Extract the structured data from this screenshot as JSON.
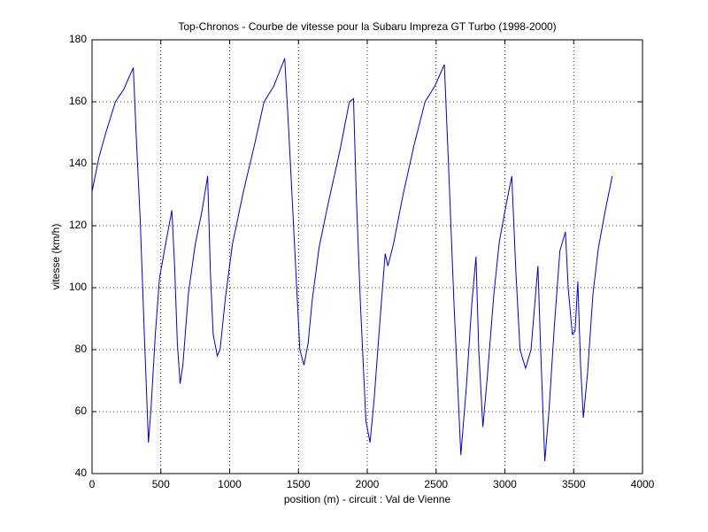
{
  "chart_data": {
    "type": "line",
    "title": "Top-Chronos - Courbe de vitesse pour la Subaru Impreza GT Turbo (1998-2000)",
    "x_label": "position (m) - circuit : Val de Vienne",
    "y_label": "vitesse (km/h)",
    "x": [
      0,
      50,
      100,
      170,
      230,
      300,
      320,
      350,
      380,
      410,
      430,
      460,
      490,
      530,
      580,
      600,
      620,
      640,
      660,
      700,
      750,
      800,
      840,
      860,
      880,
      910,
      930,
      970,
      1020,
      1100,
      1180,
      1250,
      1320,
      1400,
      1430,
      1470,
      1510,
      1540,
      1570,
      1600,
      1650,
      1720,
      1800,
      1870,
      1900,
      1920,
      1950,
      1990,
      2020,
      2050,
      2090,
      2130,
      2150,
      2190,
      2260,
      2340,
      2420,
      2490,
      2560,
      2590,
      2630,
      2680,
      2720,
      2760,
      2790,
      2810,
      2840,
      2870,
      2920,
      2960,
      3010,
      3050,
      3080,
      3110,
      3150,
      3190,
      3240,
      3260,
      3290,
      3320,
      3360,
      3400,
      3440,
      3460,
      3490,
      3510,
      3530,
      3550,
      3570,
      3600,
      3640,
      3680,
      3730,
      3780
    ],
    "series": [
      {
        "name": "vitesse",
        "color": "#0000cc",
        "values": [
          131,
          142,
          150,
          160,
          164,
          171,
          150,
          122,
          85,
          50,
          62,
          85,
          103,
          113,
          125,
          107,
          82,
          69,
          75,
          98,
          114,
          125,
          136,
          105,
          85,
          78,
          80,
          97,
          114,
          131,
          146,
          160,
          165,
          174,
          150,
          115,
          80,
          75,
          82,
          96,
          113,
          128,
          144,
          160,
          161,
          130,
          95,
          57,
          50,
          64,
          88,
          111,
          107,
          114,
          130,
          146,
          160,
          165,
          172,
          140,
          95,
          46,
          68,
          95,
          110,
          80,
          55,
          70,
          98,
          115,
          127,
          136,
          105,
          80,
          74,
          80,
          107,
          80,
          44,
          60,
          88,
          112,
          118,
          100,
          85,
          86,
          102,
          75,
          58,
          72,
          98,
          113,
          125,
          136
        ]
      }
    ],
    "xlim": [
      0,
      4000
    ],
    "xticks": [
      0,
      500,
      1000,
      1500,
      2000,
      2500,
      3000,
      3500,
      4000
    ],
    "ylim": [
      40,
      180
    ],
    "yticks": [
      40,
      60,
      80,
      100,
      120,
      140,
      160,
      180
    ],
    "grid": true
  }
}
